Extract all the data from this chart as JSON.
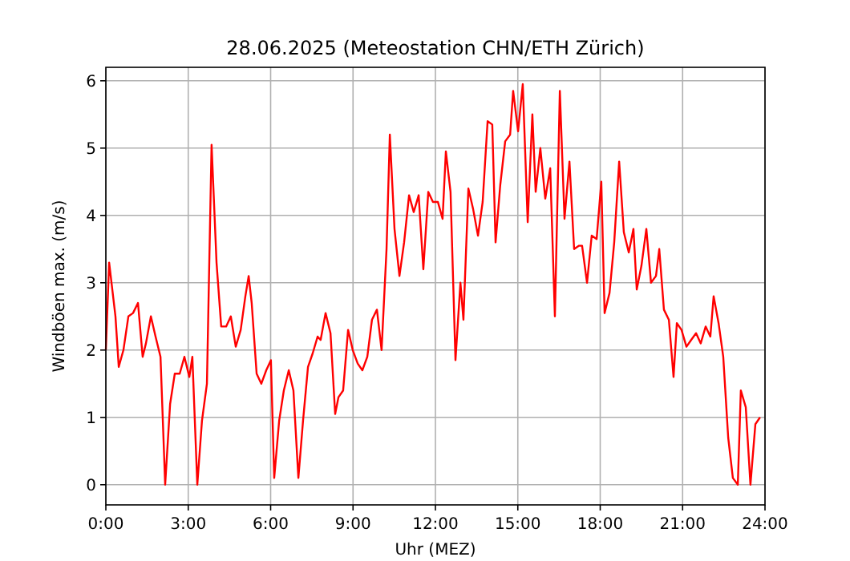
{
  "chart_data": {
    "type": "line",
    "title": "28.06.2025  (Meteostation CHN/ETH Zürich)",
    "xlabel": "Uhr (MEZ)",
    "ylabel": "Windböen max. (m/s)",
    "xlim": [
      0,
      24
    ],
    "ylim": [
      -0.3,
      6.2
    ],
    "xticks": [
      {
        "value": 0,
        "label": "0:00"
      },
      {
        "value": 3,
        "label": "3:00"
      },
      {
        "value": 6,
        "label": "6:00"
      },
      {
        "value": 9,
        "label": "9:00"
      },
      {
        "value": 12,
        "label": "12:00"
      },
      {
        "value": 15,
        "label": "15:00"
      },
      {
        "value": 18,
        "label": "18:00"
      },
      {
        "value": 21,
        "label": "21:00"
      },
      {
        "value": 24,
        "label": "24:00"
      }
    ],
    "yticks": [
      0,
      1,
      2,
      3,
      4,
      5,
      6
    ],
    "grid": true,
    "line_style": "solid",
    "series": [
      {
        "color": "#ff0000",
        "x": [
          0,
          0.12,
          0.35,
          0.47,
          0.64,
          0.82,
          0.99,
          1.17,
          1.34,
          1.46,
          1.64,
          1.81,
          1.99,
          2.16,
          2.34,
          2.51,
          2.69,
          2.86,
          3.04,
          3.15,
          3.33,
          3.5,
          3.68,
          3.85,
          4.03,
          4.2,
          4.38,
          4.55,
          4.73,
          4.91,
          5.08,
          5.2,
          5.31,
          5.49,
          5.66,
          5.84,
          6.01,
          6.13,
          6.31,
          6.48,
          6.66,
          6.83,
          7.01,
          7.18,
          7.36,
          7.53,
          7.71,
          7.82,
          8.0,
          8.18,
          8.35,
          8.47,
          8.64,
          8.82,
          8.99,
          9.17,
          9.34,
          9.52,
          9.69,
          9.87,
          10.04,
          10.22,
          10.34,
          10.51,
          10.69,
          10.86,
          11.04,
          11.21,
          11.39,
          11.56,
          11.74,
          11.91,
          12.09,
          12.26,
          12.38,
          12.55,
          12.73,
          12.91,
          13.02,
          13.2,
          13.37,
          13.55,
          13.72,
          13.9,
          14.07,
          14.19,
          14.36,
          14.54,
          14.72,
          14.83,
          15.01,
          15.18,
          15.36,
          15.53,
          15.65,
          15.82,
          16.0,
          16.18,
          16.35,
          16.53,
          16.7,
          16.88,
          17.05,
          17.23,
          17.34,
          17.52,
          17.69,
          17.87,
          18.04,
          18.16,
          18.34,
          18.51,
          18.69,
          18.86,
          19.04,
          19.21,
          19.33,
          19.5,
          19.68,
          19.85,
          20.03,
          20.15,
          20.32,
          20.5,
          20.67,
          20.79,
          20.96,
          21.14,
          21.31,
          21.49,
          21.66,
          21.84,
          22.01,
          22.13,
          22.31,
          22.48,
          22.66,
          22.83,
          23.01,
          23.12,
          23.3,
          23.47,
          23.65,
          23.82
        ],
        "values": [
          2.0,
          3.3,
          2.5,
          1.75,
          2.0,
          2.5,
          2.55,
          2.7,
          1.9,
          2.1,
          2.5,
          2.2,
          1.9,
          0,
          1.2,
          1.65,
          1.65,
          1.9,
          1.6,
          1.9,
          0,
          0.95,
          1.5,
          5.05,
          3.3,
          2.35,
          2.35,
          2.5,
          2.05,
          2.3,
          2.8,
          3.1,
          2.7,
          1.65,
          1.5,
          1.7,
          1.85,
          0.1,
          0.95,
          1.4,
          1.7,
          1.4,
          0.1,
          0.95,
          1.75,
          1.95,
          2.2,
          2.15,
          2.55,
          2.25,
          1.05,
          1.3,
          1.4,
          2.3,
          2.0,
          1.8,
          1.7,
          1.9,
          2.45,
          2.6,
          2.0,
          3.5,
          5.2,
          3.8,
          3.1,
          3.6,
          4.3,
          4.05,
          4.3,
          3.2,
          4.35,
          4.2,
          4.2,
          3.95,
          4.95,
          4.35,
          1.85,
          3.0,
          2.45,
          4.4,
          4.1,
          3.7,
          4.2,
          5.4,
          5.35,
          3.6,
          4.45,
          5.1,
          5.2,
          5.85,
          5.25,
          5.95,
          3.9,
          5.5,
          4.35,
          5.0,
          4.25,
          4.7,
          2.5,
          5.85,
          3.95,
          4.8,
          3.5,
          3.55,
          3.55,
          3.0,
          3.7,
          3.65,
          4.5,
          2.55,
          2.85,
          3.6,
          4.8,
          3.75,
          3.45,
          3.8,
          2.9,
          3.25,
          3.8,
          3.0,
          3.1,
          3.5,
          2.6,
          2.45,
          1.6,
          2.4,
          2.3,
          2.05,
          2.15,
          2.25,
          2.1,
          2.35,
          2.2,
          2.8,
          2.4,
          1.9,
          0.7,
          0.1,
          0,
          1.4,
          1.15,
          0,
          0.9,
          1.0
        ]
      }
    ]
  }
}
